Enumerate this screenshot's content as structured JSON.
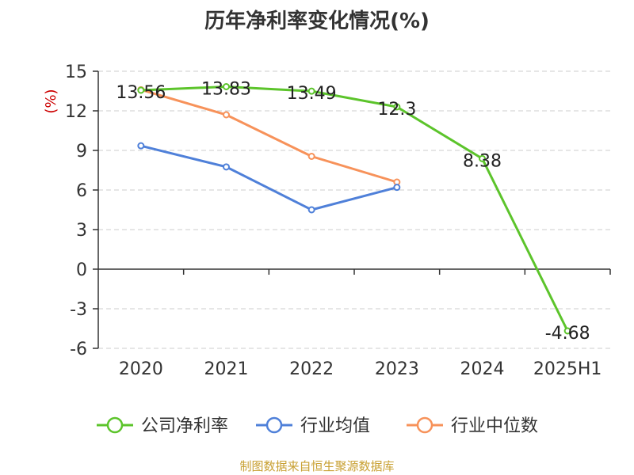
{
  "chart_data": {
    "type": "line",
    "title": "历年净利率变化情况(%)",
    "ylabel": "(%)",
    "xlabel": "",
    "categories": [
      "2020",
      "2021",
      "2022",
      "2023",
      "2024",
      "2025H1"
    ],
    "ylim": [
      -6,
      15
    ],
    "yticks": [
      15,
      12,
      9,
      6,
      3,
      0,
      -3,
      -6
    ],
    "grid": true,
    "legend_position": "bottom",
    "series": [
      {
        "name": "公司净利率",
        "color": "#5cc42b",
        "values": [
          13.56,
          13.83,
          13.49,
          12.3,
          8.38,
          -4.68
        ],
        "labels": [
          "13.56",
          "13.83",
          "13.49",
          "12.3",
          "8.38",
          "-4.68"
        ]
      },
      {
        "name": "行业均值",
        "color": "#4f80d9",
        "values": [
          9.35,
          7.75,
          4.5,
          6.2,
          null,
          null
        ]
      },
      {
        "name": "行业中位数",
        "color": "#f7925a",
        "values": [
          13.6,
          11.7,
          8.55,
          6.6,
          null,
          null
        ]
      }
    ]
  },
  "source_text": "制图数据来自恒生聚源数据库"
}
